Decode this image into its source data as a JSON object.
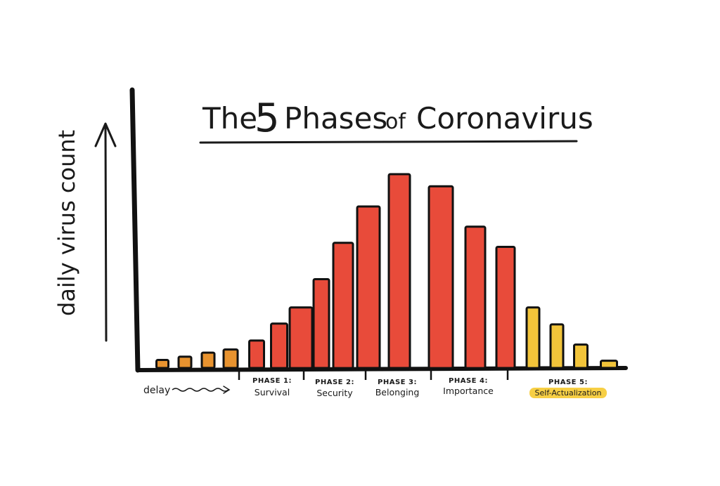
{
  "chart_data": {
    "type": "bar",
    "title": {
      "before": "The",
      "number": "5",
      "word": "Phases",
      "of": "of",
      "subject": "Coronavirus"
    },
    "ylabel": "daily virus count",
    "delay_label": "delay",
    "values": [
      1,
      1.4,
      1.9,
      2.3,
      3.4,
      5.5,
      7.5,
      11,
      15.5,
      20,
      24,
      22.5,
      17.5,
      15,
      7.5,
      5.4,
      2.9,
      0.9
    ],
    "bar_colors": [
      "#e8932f",
      "#e8932f",
      "#e8932f",
      "#e8932f",
      "#e84b3a",
      "#e84b3a",
      "#e84b3a",
      "#e84b3a",
      "#e84b3a",
      "#e84b3a",
      "#e84b3a",
      "#e84b3a",
      "#e84b3a",
      "#e84b3a",
      "#f2c43a",
      "#f2c43a",
      "#f2c43a",
      "#f2c43a"
    ],
    "ylim": [
      0,
      24
    ],
    "grid": false,
    "phases": [
      {
        "head": "PHASE 1:",
        "name": "Survival"
      },
      {
        "head": "PHASE 2:",
        "name": "Security"
      },
      {
        "head": "PHASE 3:",
        "name": "Belonging"
      },
      {
        "head": "PHASE 4:",
        "name": "Importance"
      },
      {
        "head": "PHASE 5:",
        "name": "Self-Actualization"
      }
    ],
    "highlight_color": "#f7cf45"
  }
}
